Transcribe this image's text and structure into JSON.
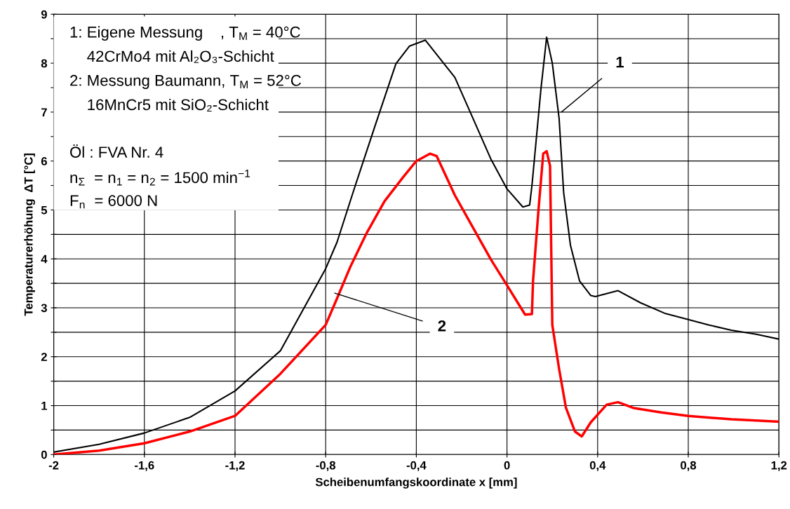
{
  "chart_data": {
    "type": "line",
    "xlabel": "Scheibenumfangskoordinate x [mm]",
    "ylabel": "Temperaturerhöhung  ΔT [°C]",
    "xlim": [
      -2,
      1.2
    ],
    "xticks": [
      {
        "value": -2,
        "label": "-2"
      },
      {
        "value": -1.6,
        "label": "-1,6"
      },
      {
        "value": -1.2,
        "label": "-1,2"
      },
      {
        "value": -0.8,
        "label": "-0,8"
      },
      {
        "value": -0.4,
        "label": "-0,4"
      },
      0,
      {
        "value": 0.4,
        "label": "0,4"
      },
      {
        "value": 0.8,
        "label": "0,8"
      },
      {
        "value": 1.2,
        "label": "1,2"
      }
    ],
    "ylim": [
      0,
      9
    ],
    "yticks": [
      0,
      {
        "value": 0.5,
        "label": null
      },
      1,
      {
        "value": 1.5,
        "label": null
      },
      2,
      {
        "value": 2.5,
        "label": null
      },
      3,
      {
        "value": 3.5,
        "label": null
      },
      4,
      {
        "value": 4.5,
        "label": null
      },
      5,
      {
        "value": 5.5,
        "label": null
      },
      6,
      {
        "value": 6.5,
        "label": null
      },
      7,
      {
        "value": 7.5,
        "label": null
      },
      8,
      {
        "value": 8.5,
        "label": null
      },
      9
    ],
    "grid": true,
    "marker": "none",
    "line_style": "solid",
    "series": [
      {
        "color": "#000000",
        "x": [
          -2,
          -1.8,
          -1.6,
          -1.4,
          -1.2,
          -1.0,
          -0.8,
          -0.75,
          -0.67,
          -0.58,
          -0.49,
          -0.43,
          -0.36,
          -0.23,
          -0.15,
          -0.07,
          0,
          0.07,
          0.1,
          0.11,
          0.15,
          0.175,
          0.2,
          0.23,
          0.25,
          0.28,
          0.32,
          0.37,
          0.39,
          0.49,
          0.59,
          0.7,
          0.8,
          0.89,
          0.99,
          1.1,
          1.2
        ],
        "values": [
          0.05,
          0.21,
          0.44,
          0.76,
          1.3,
          2.12,
          3.8,
          4.34,
          5.49,
          6.75,
          7.99,
          8.35,
          8.47,
          7.71,
          6.87,
          6.03,
          5.43,
          5.06,
          5.1,
          5.49,
          7.48,
          8.53,
          8.0,
          6.87,
          5.36,
          4.28,
          3.55,
          3.25,
          3.23,
          3.35,
          3.1,
          2.88,
          2.76,
          2.65,
          2.54,
          2.46,
          2.36
        ]
      },
      {
        "color": "#ff0000",
        "x": [
          -2,
          -1.8,
          -1.6,
          -1.4,
          -1.2,
          -1.0,
          -0.8,
          -0.75,
          -0.69,
          -0.62,
          -0.54,
          -0.46,
          -0.4,
          -0.34,
          -0.31,
          -0.23,
          -0.15,
          -0.07,
          0,
          0.08,
          0.11,
          0.115,
          0.14,
          0.16,
          0.175,
          0.19,
          0.2,
          0.23,
          0.26,
          0.3,
          0.33,
          0.37,
          0.44,
          0.49,
          0.56,
          0.68,
          0.8,
          0.99,
          1.2
        ],
        "values": [
          0.0,
          0.08,
          0.23,
          0.47,
          0.79,
          1.65,
          2.65,
          3.19,
          3.85,
          4.52,
          5.18,
          5.66,
          6.0,
          6.15,
          6.1,
          5.3,
          4.64,
          3.98,
          3.46,
          2.86,
          2.87,
          3.55,
          5.06,
          6.15,
          6.2,
          5.9,
          2.65,
          1.75,
          0.96,
          0.47,
          0.37,
          0.66,
          1.02,
          1.07,
          0.95,
          0.86,
          0.79,
          0.72,
          0.67
        ]
      }
    ],
    "annotations": [
      "1: Eigene Messung    , T$_{M}$ = 40°C",
      "    42CrMo4 mit Al₂O₃-Schicht",
      "2: Messung Baumann, T$_{M}$ = 52°C",
      "    16MnCr5 mit SiO₂-Schicht",
      "Öl : FVA Nr. 4",
      "n$_{Σ}$  = n$_{1}$ = n$_{2}$ = 1500 min$^{−1}$",
      "F$_{n}$  = 6000 N",
      {
        "text": "1",
        "x": 0.24,
        "y": 7.0
      },
      {
        "text": "2",
        "x": -0.76,
        "y": 3.3
      }
    ]
  }
}
